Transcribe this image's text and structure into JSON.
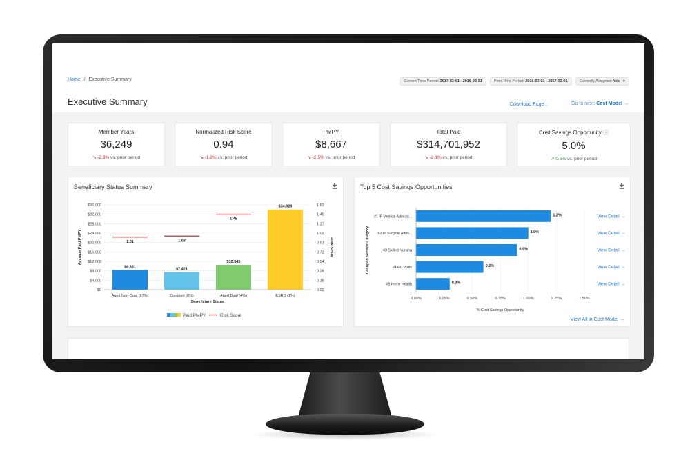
{
  "breadcrumb": {
    "home": "Home",
    "separator": "/",
    "current": "Executive Summary"
  },
  "filters": [
    {
      "label": "Current Time Period:",
      "value": "2017-03-01 - 2018-03-01"
    },
    {
      "label": "Prior Time Period:",
      "value": "2016-03-01 - 2017-03-01"
    },
    {
      "label": "Currently Assigned:",
      "value": "Yes",
      "close": "×"
    }
  ],
  "page_title": "Executive Summary",
  "actions": {
    "download": "Download Page",
    "download_icon": "⭳",
    "goto_prefix": "Go to next:",
    "goto_target": "Cost Model",
    "goto_arrow": "→"
  },
  "kpis": [
    {
      "label": "Member Years",
      "value": "36,249",
      "delta": "-2.3%",
      "suffix": "vs. prior period",
      "trend": "down"
    },
    {
      "label": "Normalized Risk Score",
      "value": "0.94",
      "delta": "-1.2%",
      "suffix": "vs. prior period",
      "trend": "down"
    },
    {
      "label": "PMPY",
      "value": "$8,667",
      "delta": "-2.5%",
      "suffix": "vs. prior period",
      "trend": "down"
    },
    {
      "label": "Total Paid",
      "value": "$314,701,952",
      "delta": "-2.1%",
      "suffix": "vs. prior period",
      "trend": "down"
    },
    {
      "label": "Cost Savings Opportunity",
      "value": "5.0%",
      "delta": "0.5%",
      "suffix": "vs. prior period",
      "trend": "up",
      "info_icon": "ⓘ"
    }
  ],
  "colors": {
    "accent": "#1f77d0",
    "negative": "#d62b2b",
    "positive": "#2aa34a",
    "risk_line": "#d62b2b",
    "hbar": "#1f8be0"
  },
  "panels": {
    "beneficiary": {
      "title": "Beneficiary Status Summary"
    },
    "cost_savings": {
      "title": "Top 5 Cost Savings Opportunities",
      "view_all": "View All in Cost Model →"
    }
  },
  "chart_data": [
    {
      "type": "bar",
      "title": "Beneficiary Status Summary",
      "xlabel": "Beneficiary Status",
      "ylabel": "Average Paid PMPY",
      "y2label": "Risk Score",
      "categories": [
        "Aged Non-Dual (87%)",
        "Disabled (8%)",
        "Aged Dual (4%)",
        "ESRD (1%)"
      ],
      "bar_colors": [
        "#1f8be0",
        "#63c3e8",
        "#7fcb6e",
        "#ffcd2a"
      ],
      "series": [
        {
          "name": "Paid PMPY",
          "values": [
            8351,
            7421,
            10541,
            34029
          ],
          "labels": [
            "$8,351",
            "$7,421",
            "$10,541",
            "$34,029"
          ]
        },
        {
          "name": "Risk Score",
          "values": [
            1.01,
            1.03,
            1.45,
            null
          ],
          "labels": [
            "1.01",
            "1.03",
            "1.45",
            ""
          ]
        }
      ],
      "ylim": [
        0,
        36000
      ],
      "yticks": [
        "$36,000",
        "$32,000",
        "$28,000",
        "$24,000",
        "$20,000",
        "$16,000",
        "$12,000",
        "$8,000",
        "$4,000",
        "$0"
      ],
      "y2lim": [
        0,
        1.63
      ],
      "y2ticks": [
        "1.63",
        "1.45",
        "1.27",
        "1.09",
        "0.91",
        "0.72",
        "0.54",
        "0.36",
        "0.18",
        "0.00"
      ],
      "legend": [
        "Paid PMPY",
        "Risk Score"
      ]
    },
    {
      "type": "bar",
      "orientation": "horizontal",
      "title": "Top 5 Cost Savings Opportunities",
      "xlabel": "% Cost Savings Opportunity",
      "ylabel": "Grouped Service Category",
      "categories": [
        "#1 IP Medical Admissi...",
        "#2 IP Surgical Admi...",
        "#3 Skilled Nursing",
        "#4 ED Visits",
        "#5 Home Health"
      ],
      "values": [
        1.2,
        1.0,
        0.9,
        0.6,
        0.3
      ],
      "labels": [
        "1.2%",
        "1.0%",
        "0.9%",
        "0.6%",
        "0.3%"
      ],
      "xlim": [
        0,
        1.5
      ],
      "xticks": [
        "0.00%",
        "0.25%",
        "0.50%",
        "0.75%",
        "1.00%",
        "1.25%",
        "1.50%"
      ],
      "row_link": "View Detail →"
    }
  ]
}
